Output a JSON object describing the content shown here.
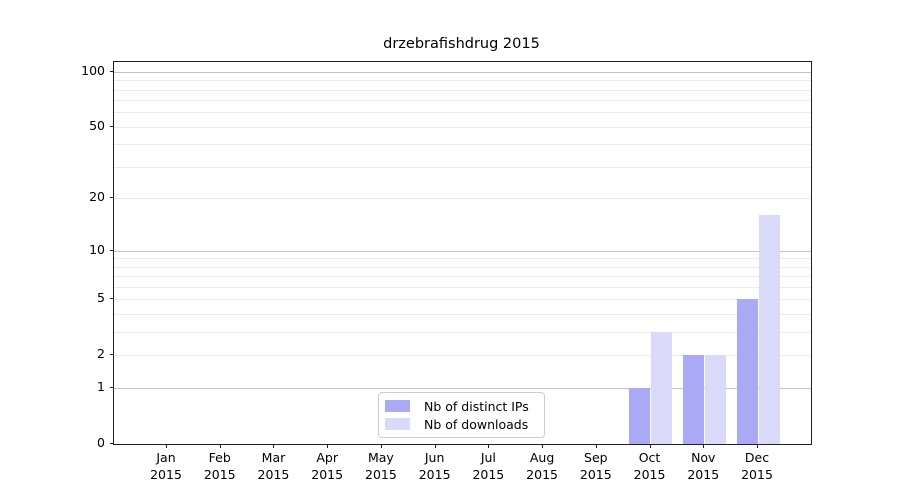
{
  "chart_data": {
    "type": "bar",
    "title": "drzebrafishdrug 2015",
    "categories": [
      "Jan",
      "Feb",
      "Mar",
      "Apr",
      "May",
      "Jun",
      "Jul",
      "Aug",
      "Sep",
      "Oct",
      "Nov",
      "Dec"
    ],
    "year_label": "2015",
    "series": [
      {
        "name": "Nb of distinct IPs",
        "color": "#a9a9f6",
        "values": [
          0,
          0,
          0,
          0,
          0,
          0,
          0,
          0,
          0,
          1,
          2,
          5
        ]
      },
      {
        "name": "Nb of downloads",
        "color": "#d9d9fa",
        "values": [
          0,
          0,
          0,
          0,
          0,
          0,
          0,
          0,
          0,
          3,
          2,
          16
        ]
      }
    ],
    "yticks": [
      0,
      1,
      2,
      5,
      10,
      20,
      50,
      100
    ],
    "gridlines_major": [
      1,
      10,
      100
    ],
    "gridlines_minor": [
      2,
      3,
      4,
      5,
      6,
      7,
      8,
      9,
      20,
      30,
      40,
      50,
      60,
      70,
      80,
      90
    ],
    "y_scale": "log10(1+v)",
    "ylim": [
      0,
      113
    ],
    "grid": "horizontal",
    "legend_position": "bottom-center"
  }
}
